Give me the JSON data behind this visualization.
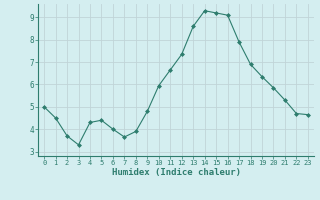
{
  "x": [
    0,
    1,
    2,
    3,
    4,
    5,
    6,
    7,
    8,
    9,
    10,
    11,
    12,
    13,
    14,
    15,
    16,
    17,
    18,
    19,
    20,
    21,
    22,
    23
  ],
  "y": [
    5.0,
    4.5,
    3.7,
    3.3,
    4.3,
    4.4,
    4.0,
    3.65,
    3.9,
    4.8,
    5.95,
    6.65,
    7.35,
    8.6,
    9.3,
    9.2,
    9.1,
    7.9,
    6.9,
    6.35,
    5.85,
    5.3,
    4.7,
    4.65
  ],
  "xlabel": "Humidex (Indice chaleur)",
  "bg_color": "#d4eef0",
  "grid_color": "#c0d4d8",
  "line_color": "#2e7d6e",
  "marker_color": "#2e7d6e",
  "xlim": [
    -0.5,
    23.5
  ],
  "ylim": [
    2.8,
    9.6
  ],
  "yticks": [
    3,
    4,
    5,
    6,
    7,
    8,
    9
  ],
  "xticks": [
    0,
    1,
    2,
    3,
    4,
    5,
    6,
    7,
    8,
    9,
    10,
    11,
    12,
    13,
    14,
    15,
    16,
    17,
    18,
    19,
    20,
    21,
    22,
    23
  ],
  "tick_color": "#2e7d6e",
  "xlabel_color": "#2e7d6e",
  "xlabel_fontsize": 6.5,
  "tick_fontsize": 5.0
}
